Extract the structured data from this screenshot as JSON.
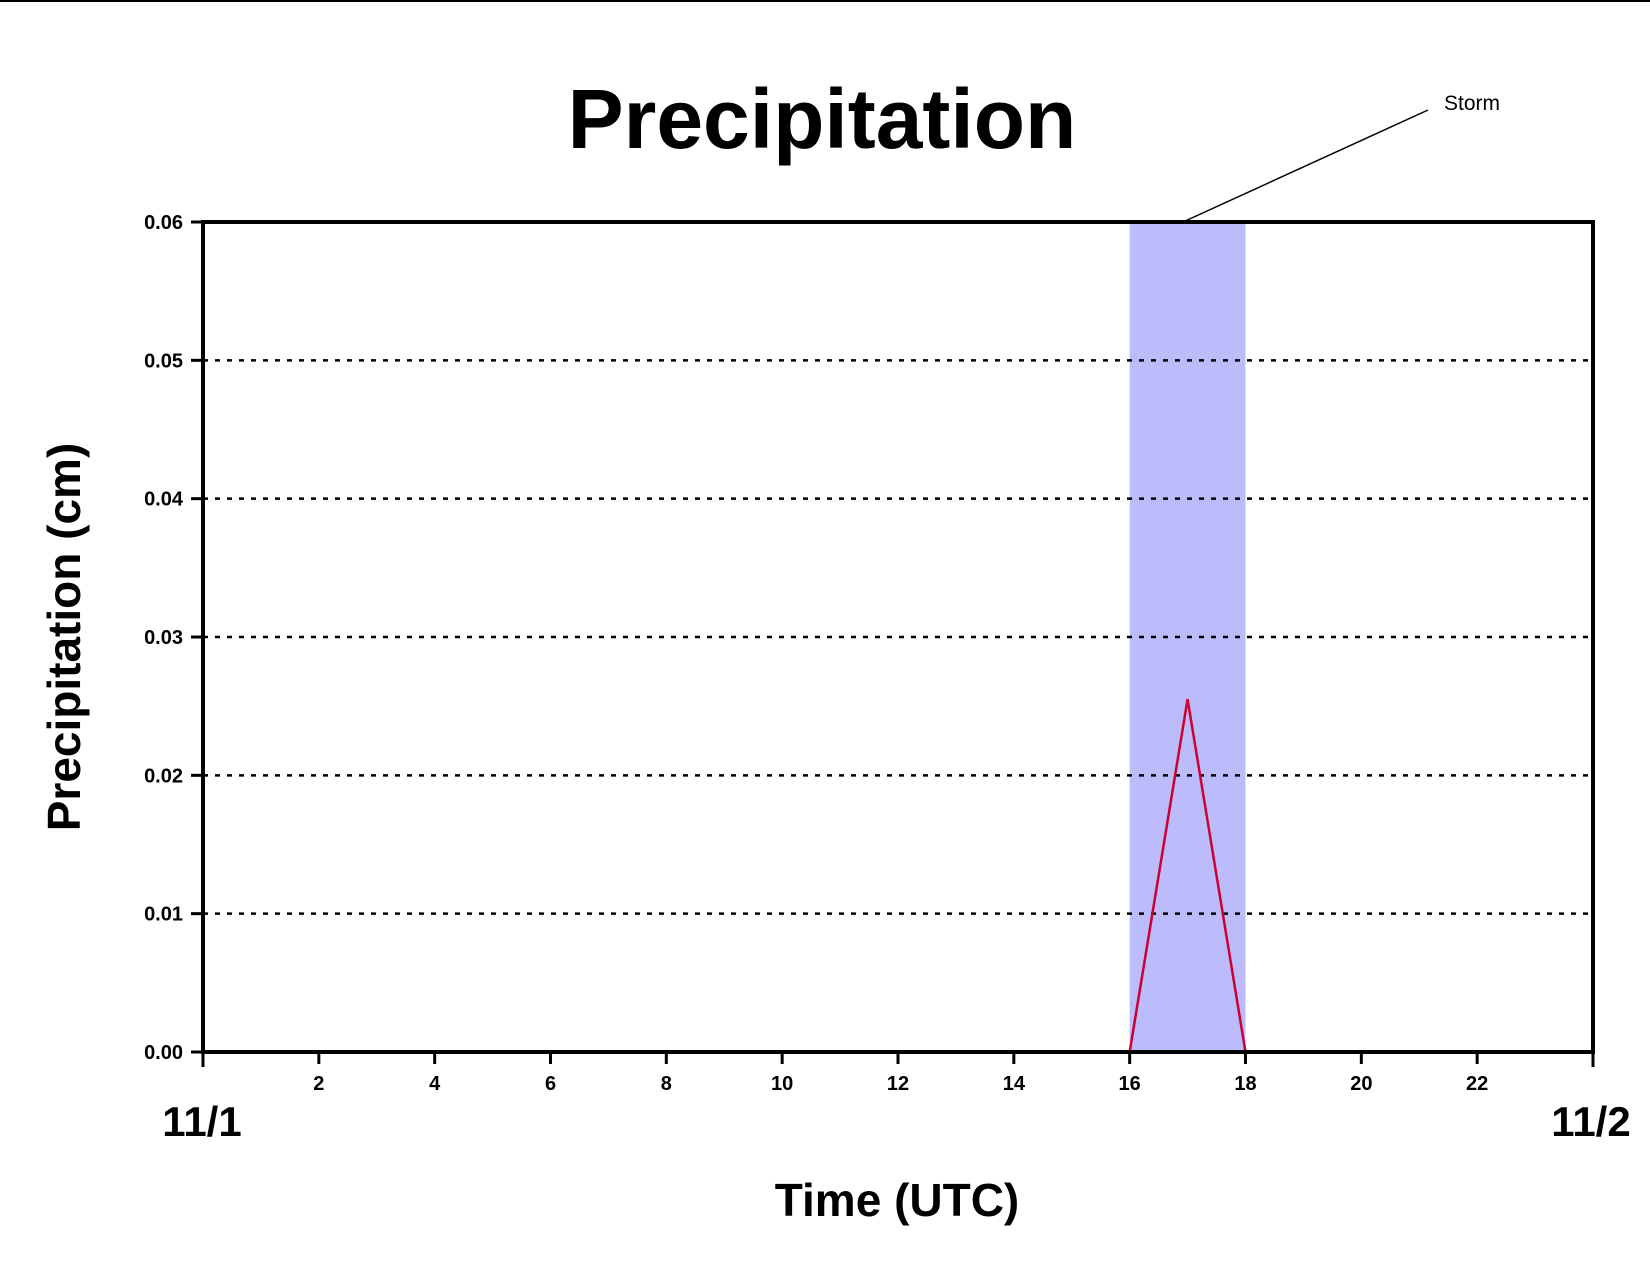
{
  "chart_data": {
    "type": "line",
    "title": "Precipitation",
    "xlabel": "Time (UTC)",
    "ylabel": "Precipitation (cm)",
    "xlim": [
      0,
      24
    ],
    "ylim": [
      0,
      0.06
    ],
    "x_ticks": [
      2,
      4,
      6,
      8,
      10,
      12,
      14,
      16,
      18,
      20,
      22
    ],
    "y_ticks": [
      "0.00",
      "0.01",
      "0.02",
      "0.03",
      "0.04",
      "0.05",
      "0.06"
    ],
    "date_labels": {
      "start": "11/1",
      "end": "11/2"
    },
    "grid": "horizontal dotted",
    "series": [
      {
        "color": "#cc0033",
        "x": [
          0,
          16,
          17,
          18,
          24
        ],
        "y": [
          0,
          0,
          0.0255,
          0,
          0
        ]
      }
    ],
    "shaded_region": {
      "x_start": 16,
      "x_end": 18,
      "color": "#bcbcfc"
    },
    "annotation": {
      "text": "Storm"
    }
  }
}
